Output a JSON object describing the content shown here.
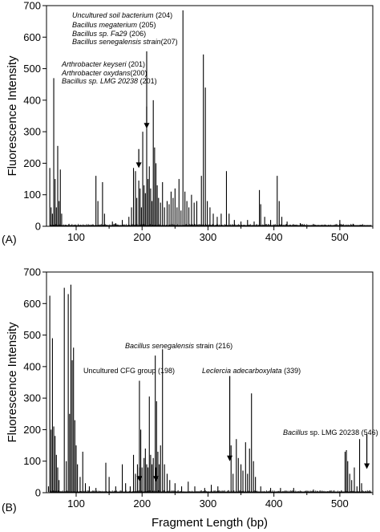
{
  "chart_data": [
    {
      "type": "line",
      "panel_label": "(A)",
      "xlabel": "",
      "ylabel": "Fluorescence Intensity",
      "xlim": [
        55,
        550
      ],
      "ylim": [
        0,
        700
      ],
      "xticks": [
        100,
        200,
        300,
        400,
        500
      ],
      "yticks": [
        0,
        100,
        200,
        300,
        400,
        500,
        600,
        700
      ],
      "grid": false,
      "series": [
        {
          "peaks": [
            [
              60,
              185
            ],
            [
              62,
              60
            ],
            [
              64,
              40
            ],
            [
              66,
              470
            ],
            [
              68,
              150
            ],
            [
              70,
              60
            ],
            [
              72,
              255
            ],
            [
              74,
              80
            ],
            [
              76,
              180
            ],
            [
              78,
              40
            ],
            [
              130,
              160
            ],
            [
              133,
              80
            ],
            [
              140,
              140
            ],
            [
              143,
              40
            ],
            [
              155,
              15
            ],
            [
              160,
              10
            ],
            [
              170,
              20
            ],
            [
              180,
              30
            ],
            [
              184,
              60
            ],
            [
              187,
              185
            ],
            [
              190,
              175
            ],
            [
              192,
              90
            ],
            [
              195,
              145
            ],
            [
              197,
              120
            ],
            [
              199,
              60
            ],
            [
              201,
              300
            ],
            [
              203,
              130
            ],
            [
              205,
              105
            ],
            [
              207,
              555
            ],
            [
              209,
              150
            ],
            [
              211,
              190
            ],
            [
              213,
              120
            ],
            [
              215,
              80
            ],
            [
              217,
              400
            ],
            [
              219,
              250
            ],
            [
              221,
              200
            ],
            [
              223,
              130
            ],
            [
              225,
              90
            ],
            [
              228,
              75
            ],
            [
              231,
              140
            ],
            [
              234,
              60
            ],
            [
              238,
              80
            ],
            [
              241,
              70
            ],
            [
              244,
              110
            ],
            [
              247,
              90
            ],
            [
              250,
              120
            ],
            [
              253,
              60
            ],
            [
              256,
              150
            ],
            [
              259,
              50
            ],
            [
              262,
              685
            ],
            [
              265,
              110
            ],
            [
              268,
              80
            ],
            [
              271,
              60
            ],
            [
              275,
              100
            ],
            [
              279,
              75
            ],
            [
              283,
              80
            ],
            [
              290,
              160
            ],
            [
              293,
              545
            ],
            [
              296,
              440
            ],
            [
              299,
              80
            ],
            [
              303,
              60
            ],
            [
              308,
              40
            ],
            [
              314,
              30
            ],
            [
              320,
              40
            ],
            [
              328,
              175
            ],
            [
              332,
              40
            ],
            [
              340,
              20
            ],
            [
              350,
              15
            ],
            [
              360,
              20
            ],
            [
              370,
              15
            ],
            [
              378,
              115
            ],
            [
              380,
              70
            ],
            [
              386,
              30
            ],
            [
              395,
              20
            ],
            [
              405,
              160
            ],
            [
              408,
              80
            ],
            [
              412,
              30
            ],
            [
              420,
              15
            ],
            [
              440,
              10
            ],
            [
              500,
              20
            ],
            [
              520,
              8
            ]
          ]
        }
      ],
      "annotations": [
        {
          "species": "Uncultured soil bacterium",
          "count": "(204)"
        },
        {
          "species": "Bacillus megaterium",
          "count": "(205)"
        },
        {
          "species": "Bacillus sp. Fa29",
          "count": "(206)"
        },
        {
          "species": "Bacillus senegalensis strain",
          "count": "(207)"
        },
        {
          "species": "Arthrobacter keyseri",
          "count": "(201)"
        },
        {
          "species": "Arthrobacter oxydans",
          "count": "(200)"
        },
        {
          "species": "Bacillus sp. LMG 20238",
          "count": "(201)"
        }
      ],
      "arrows": [
        {
          "x": 195,
          "y_top": 245,
          "y_tip": 185
        },
        {
          "x": 207,
          "y_top": 380,
          "y_tip": 310
        }
      ]
    },
    {
      "type": "line",
      "panel_label": "(B)",
      "xlabel": "Fragment Length (bp)",
      "ylabel": "Fluorescence Intensity",
      "xlim": [
        55,
        550
      ],
      "ylim": [
        0,
        700
      ],
      "xticks": [
        100,
        200,
        300,
        400,
        500
      ],
      "yticks": [
        0,
        100,
        200,
        300,
        400,
        500,
        600,
        700
      ],
      "grid": false,
      "series": [
        {
          "peaks": [
            [
              58,
              20
            ],
            [
              60,
              625
            ],
            [
              62,
              200
            ],
            [
              64,
              490
            ],
            [
              66,
              210
            ],
            [
              68,
              180
            ],
            [
              70,
              120
            ],
            [
              72,
              80
            ],
            [
              74,
              40
            ],
            [
              82,
              650
            ],
            [
              85,
              100
            ],
            [
              88,
              630
            ],
            [
              90,
              250
            ],
            [
              92,
              660
            ],
            [
              94,
              420
            ],
            [
              96,
              460
            ],
            [
              98,
              230
            ],
            [
              100,
              150
            ],
            [
              102,
              90
            ],
            [
              106,
              50
            ],
            [
              110,
              130
            ],
            [
              114,
              30
            ],
            [
              120,
              20
            ],
            [
              130,
              15
            ],
            [
              145,
              95
            ],
            [
              150,
              50
            ],
            [
              160,
              20
            ],
            [
              170,
              90
            ],
            [
              175,
              30
            ],
            [
              182,
              20
            ],
            [
              187,
              120
            ],
            [
              190,
              60
            ],
            [
              193,
              90
            ],
            [
              196,
              355
            ],
            [
              198,
              200
            ],
            [
              200,
              80
            ],
            [
              203,
              110
            ],
            [
              205,
              140
            ],
            [
              207,
              90
            ],
            [
              209,
              80
            ],
            [
              211,
              305
            ],
            [
              213,
              120
            ],
            [
              215,
              90
            ],
            [
              217,
              110
            ],
            [
              220,
              435
            ],
            [
              222,
              290
            ],
            [
              224,
              130
            ],
            [
              226,
              90
            ],
            [
              228,
              150
            ],
            [
              231,
              455
            ],
            [
              234,
              90
            ],
            [
              238,
              60
            ],
            [
              242,
              40
            ],
            [
              250,
              30
            ],
            [
              260,
              20
            ],
            [
              270,
              35
            ],
            [
              280,
              20
            ],
            [
              295,
              15
            ],
            [
              305,
              25
            ],
            [
              315,
              20
            ],
            [
              335,
              150
            ],
            [
              338,
              60
            ],
            [
              343,
              170
            ],
            [
              346,
              110
            ],
            [
              350,
              90
            ],
            [
              353,
              70
            ],
            [
              357,
              160
            ],
            [
              360,
              60
            ],
            [
              363,
              140
            ],
            [
              366,
              315
            ],
            [
              369,
              100
            ],
            [
              372,
              50
            ],
            [
              380,
              20
            ],
            [
              395,
              15
            ],
            [
              410,
              15
            ],
            [
              430,
              15
            ],
            [
              460,
              10
            ],
            [
              508,
              130
            ],
            [
              510,
              135
            ],
            [
              512,
              100
            ],
            [
              515,
              60
            ],
            [
              518,
              40
            ],
            [
              522,
              80
            ],
            [
              526,
              20
            ],
            [
              530,
              170
            ],
            [
              533,
              30
            ]
          ]
        }
      ],
      "annotations": [
        {
          "species": "Bacillus senegalensis",
          "plain": "strain (216)"
        },
        {
          "species": "",
          "plain": "Uncultured CFG group (198)"
        },
        {
          "species": "Leclercia adecarboxylata",
          "plain": "(339)"
        },
        {
          "species": "Bacillus",
          "plain": "sp. LMG 20238 (546)"
        }
      ],
      "arrows": [
        {
          "x": 196,
          "y_top": 80,
          "y_tip": 35
        },
        {
          "x": 221,
          "y_top": 80,
          "y_tip": 35
        },
        {
          "x": 333,
          "y_top": 370,
          "y_tip": 100
        },
        {
          "x": 541,
          "y_top": 185,
          "y_tip": 75
        }
      ]
    }
  ]
}
